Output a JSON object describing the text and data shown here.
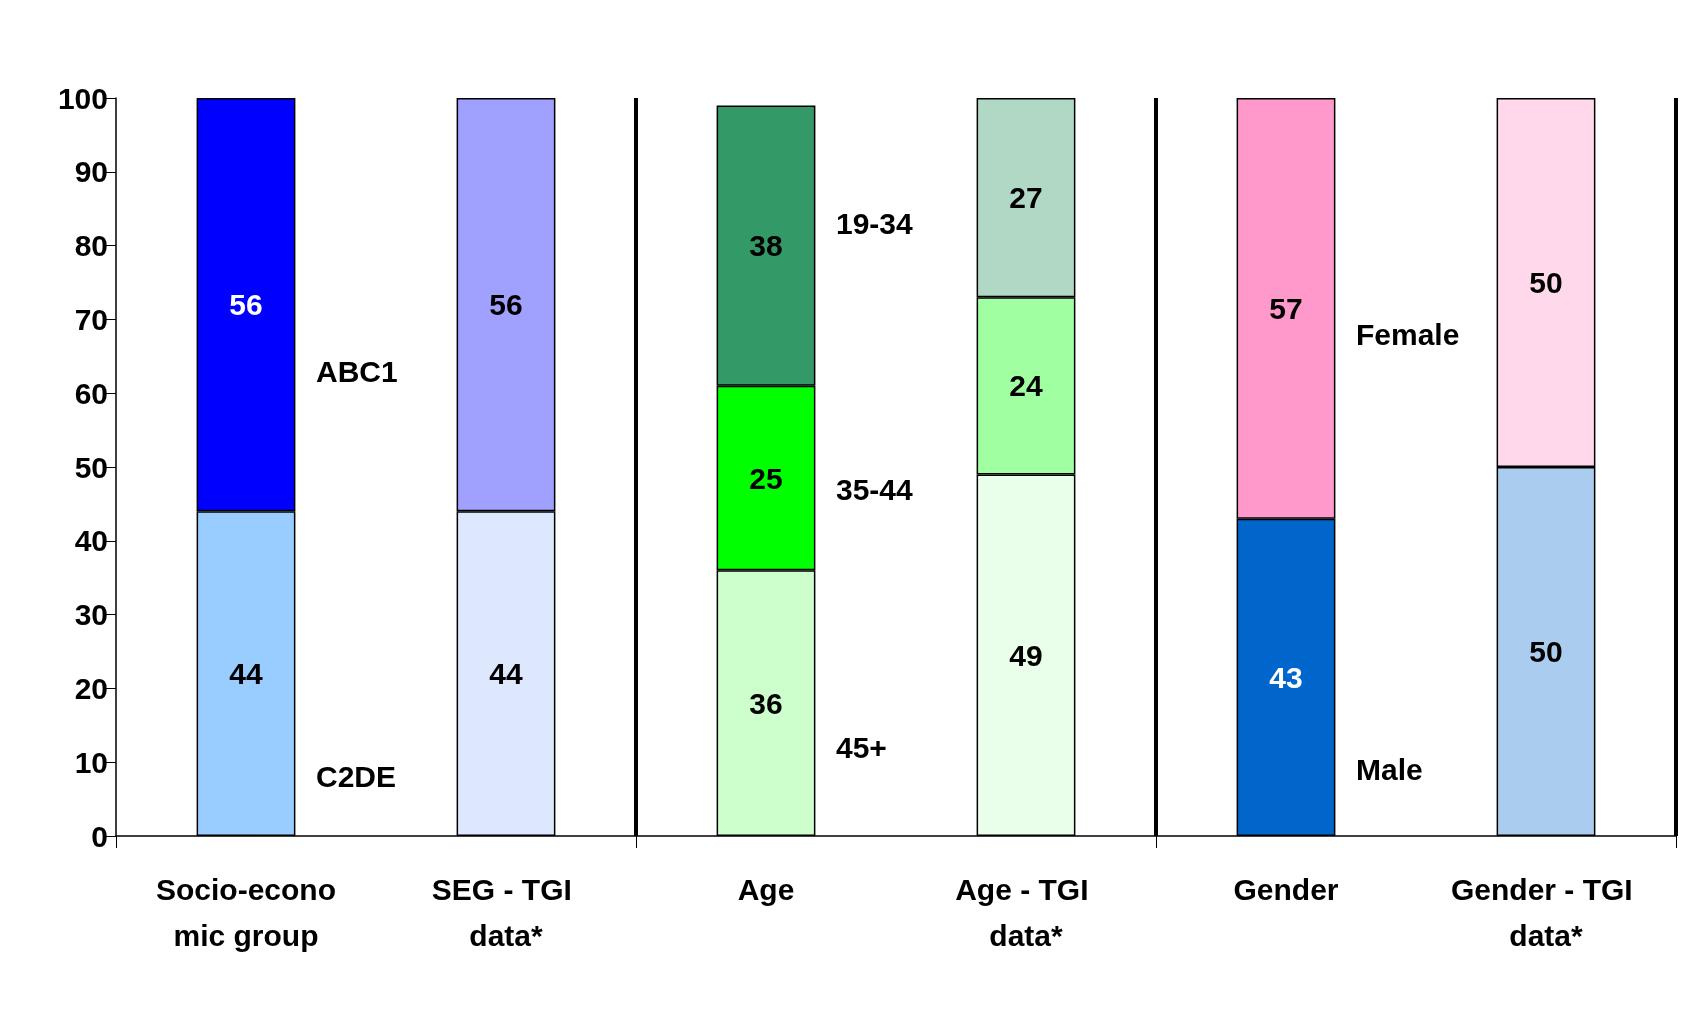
{
  "chart_data": {
    "type": "bar",
    "stacked": true,
    "data_labels": true,
    "grid": "x",
    "categories": [
      "Socio-economic group",
      "SEG - TGI data*",
      "Age",
      "Age - TGI data*",
      "Gender",
      "Gender - TGI data*"
    ],
    "series": [
      {
        "colors": [
          "#99ccff",
          "#dde8ff",
          "#ccffcc",
          "#eaffea",
          "#0066cc",
          "#aaccee"
        ],
        "values": [
          44,
          44,
          36,
          49,
          43,
          50
        ]
      },
      {
        "colors": [
          "#ffffff",
          "#ffffff",
          "#00ff00",
          "#a0ffa0",
          "#ffffff",
          "#ffffff"
        ],
        "values": [
          null,
          null,
          25,
          24,
          null,
          null
        ]
      },
      {
        "colors": [
          "#0000ff",
          "#a0a0ff",
          "#339966",
          "#b0d8c4",
          "#ff99cc",
          "#ffd8ec"
        ],
        "values": [
          56,
          56,
          38,
          27,
          57,
          50
        ]
      }
    ],
    "ylim": [
      0,
      100
    ],
    "yticks": [
      0,
      10,
      20,
      30,
      40,
      50,
      60,
      70,
      80,
      90,
      100
    ],
    "annotations": [
      "ABC1",
      "C2DE",
      "19-34",
      "35-44",
      "45+",
      "Female",
      "Male"
    ]
  }
}
